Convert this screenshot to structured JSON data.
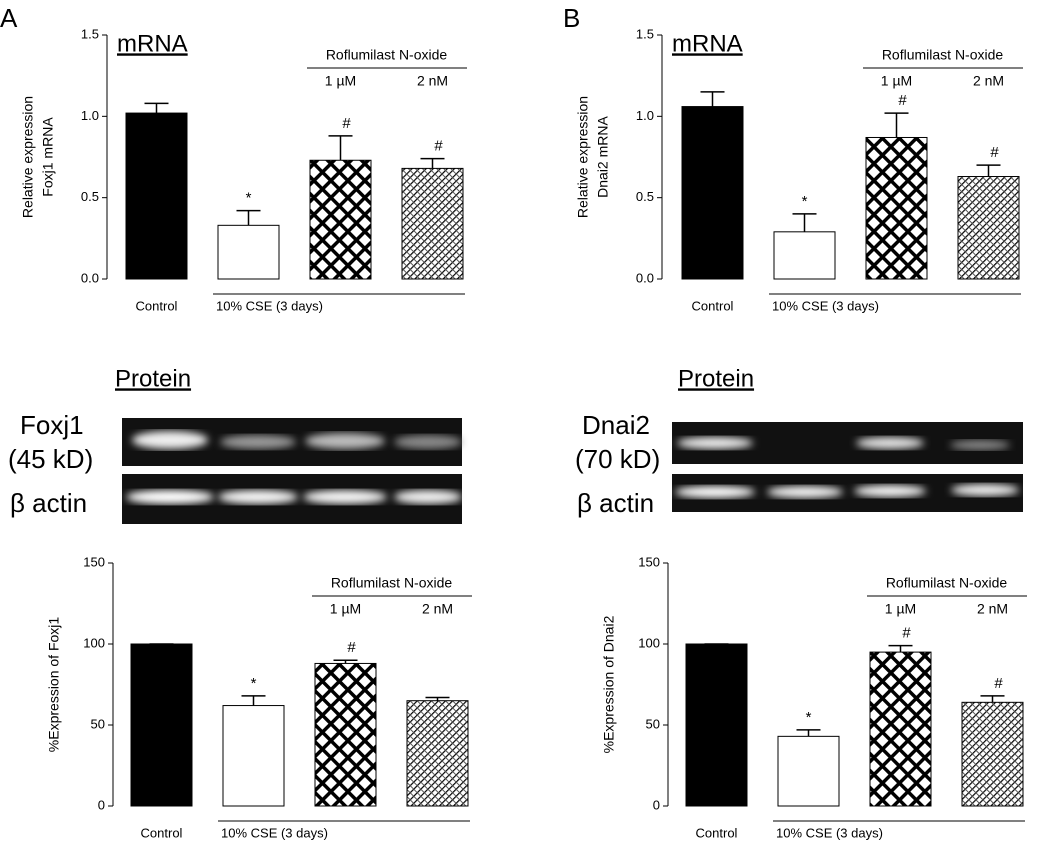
{
  "panel_labels": [
    "A",
    "B"
  ],
  "blots": [
    {
      "title": "Protein",
      "target": "Foxj1",
      "size": "(45 kD)",
      "control": "β actin"
    },
    {
      "title": "Protein",
      "target": "Dnai2",
      "size": "(70 kD)",
      "control": "β actin"
    }
  ],
  "chart_data": [
    {
      "type": "bar",
      "title": "mRNA",
      "y_label": [
        "Relative expression",
        "Foxj1 mRNA"
      ],
      "control_label": "Control",
      "cse_label": "10% CSE (3 days)",
      "treatment_label": "Roflumilast N-oxide",
      "doses": [
        "1 µM",
        "2 nM"
      ],
      "values": [
        1.02,
        0.33,
        0.73,
        0.68
      ],
      "errors": [
        0.06,
        0.09,
        0.15,
        0.06
      ],
      "markers": [
        null,
        "*",
        "#",
        "#"
      ],
      "patterns": [
        "solid",
        "open",
        "crosshatch",
        "fine-hatch"
      ],
      "color": "#000000",
      "ylim": [
        0,
        1.5
      ],
      "yticks": [
        {
          "value": 0,
          "label": "0.0"
        },
        0.5,
        {
          "value": 1,
          "label": "1.0"
        },
        1.5
      ]
    },
    {
      "type": "bar",
      "title": "mRNA",
      "y_label": [
        "Relative expression",
        "Dnai2 mRNA"
      ],
      "control_label": "Control",
      "cse_label": "10% CSE (3 days)",
      "treatment_label": "Roflumilast N-oxide",
      "doses": [
        "1 µM",
        "2 nM"
      ],
      "values": [
        1.06,
        0.29,
        0.87,
        0.63
      ],
      "errors": [
        0.09,
        0.11,
        0.15,
        0.07
      ],
      "markers": [
        null,
        "*",
        "#",
        "#"
      ],
      "patterns": [
        "solid",
        "open",
        "crosshatch",
        "fine-hatch"
      ],
      "color": "#000000",
      "ylim": [
        0,
        1.5
      ],
      "yticks": [
        {
          "value": 0,
          "label": "0.0"
        },
        0.5,
        {
          "value": 1,
          "label": "1.0"
        },
        1.5
      ]
    },
    {
      "type": "bar",
      "y_label": [
        "%Expression of Foxj1"
      ],
      "control_label": "Control",
      "cse_label": "10% CSE (3 days)",
      "treatment_label": "Roflumilast N-oxide",
      "doses": [
        "1 µM",
        "2 nM"
      ],
      "values": [
        100,
        62,
        88,
        65
      ],
      "errors": [
        0,
        6,
        2,
        2
      ],
      "markers": [
        null,
        "*",
        "#",
        null
      ],
      "patterns": [
        "solid",
        "open",
        "crosshatch",
        "fine-hatch"
      ],
      "color": "#000000",
      "ylim": [
        0,
        150
      ],
      "yticks": [
        0,
        50,
        100,
        150
      ]
    },
    {
      "type": "bar",
      "y_label": [
        "%Expression of Dnai2"
      ],
      "control_label": "Control",
      "cse_label": "10% CSE (3 days)",
      "treatment_label": "Roflumilast N-oxide",
      "doses": [
        "1 µM",
        "2 nM"
      ],
      "values": [
        100,
        43,
        95,
        64
      ],
      "errors": [
        0,
        4,
        4,
        4
      ],
      "markers": [
        null,
        "*",
        "#",
        "#"
      ],
      "patterns": [
        "solid",
        "open",
        "crosshatch",
        "fine-hatch"
      ],
      "color": "#000000",
      "ylim": [
        0,
        150
      ],
      "yticks": [
        0,
        50,
        100,
        150
      ]
    }
  ]
}
